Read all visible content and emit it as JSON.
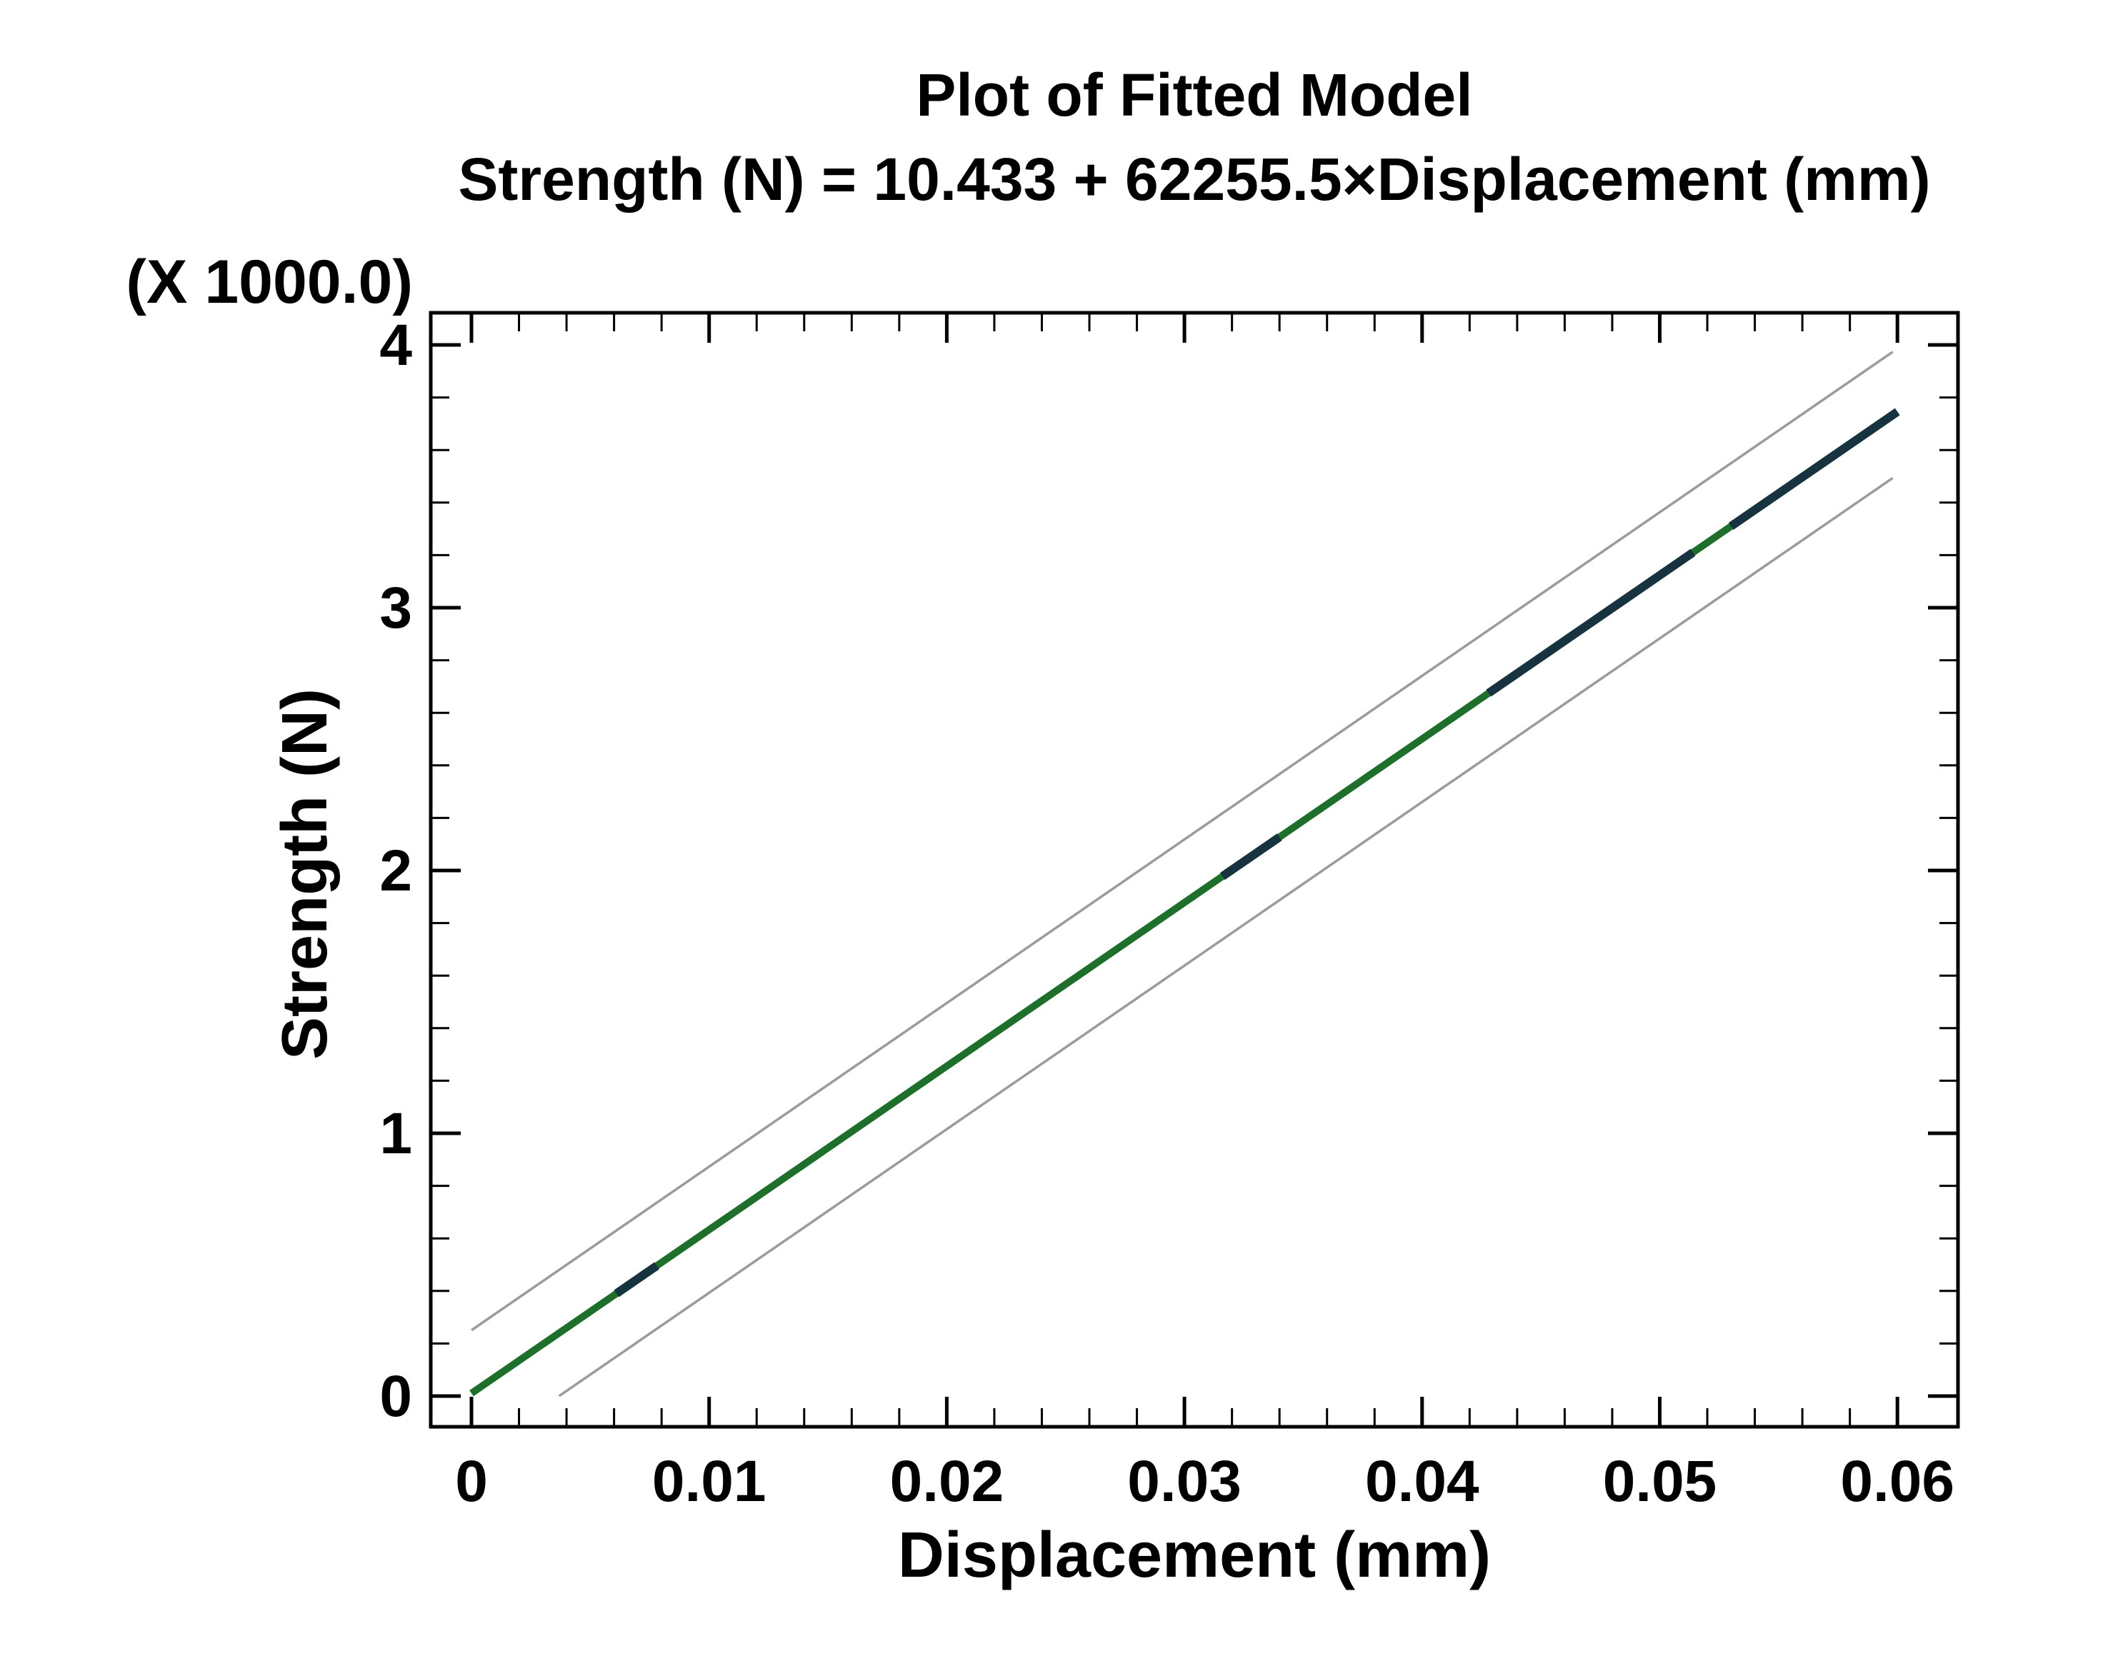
{
  "window": {
    "background": "#ffffff"
  },
  "chart_data": {
    "type": "line",
    "title": "Plot of Fitted Model",
    "subtitle_equation": "Strength (N) = 10.433 + 62255.5×Displacement (mm)",
    "xlabel": "Displacement (mm)",
    "ylabel": "Strength (N)",
    "y_scale_note": "(X 1000.0)",
    "model": {
      "intercept": 10.433,
      "slope": 62255.5,
      "response": "Strength (N)",
      "predictor": "Displacement (mm)"
    },
    "x_axis": {
      "min": 0,
      "max": 0.06,
      "major_step": 0.01,
      "minor_step": 0.002,
      "tick_labels": [
        "0",
        "0.01",
        "0.02",
        "0.03",
        "0.04",
        "0.05",
        "0.06"
      ]
    },
    "y_axis": {
      "min": 0,
      "max": 4000,
      "major_step": 1000,
      "minor_step": 200,
      "tick_labels": [
        "0",
        "1",
        "2",
        "3",
        "4"
      ],
      "unit_multiplier": 1000
    },
    "grid": false,
    "legend": false,
    "frame_color": "#000000",
    "series": [
      {
        "name": "fitted-line",
        "kind": "fit",
        "color": "#1e6f2b",
        "width": 10,
        "offset": 0,
        "x_range": [
          0,
          0.06
        ]
      },
      {
        "name": "prediction-limit-upper",
        "kind": "band",
        "color": "#9b9b9b",
        "width": 3.5,
        "offset": 240,
        "x_range": [
          0,
          0.0598
        ]
      },
      {
        "name": "prediction-limit-lower",
        "kind": "band",
        "color": "#9b9b9b",
        "width": 3.5,
        "offset": -240,
        "x_range": [
          0.003688,
          0.0598
        ]
      },
      {
        "name": "observed-data-segment",
        "kind": "observed",
        "color": "#16333f",
        "width": 12,
        "offset": 0,
        "segments_x": [
          [
            0.0061,
            0.0078
          ],
          [
            0.0316,
            0.034
          ],
          [
            0.0428,
            0.0514
          ],
          [
            0.053,
            0.06
          ]
        ]
      }
    ]
  }
}
